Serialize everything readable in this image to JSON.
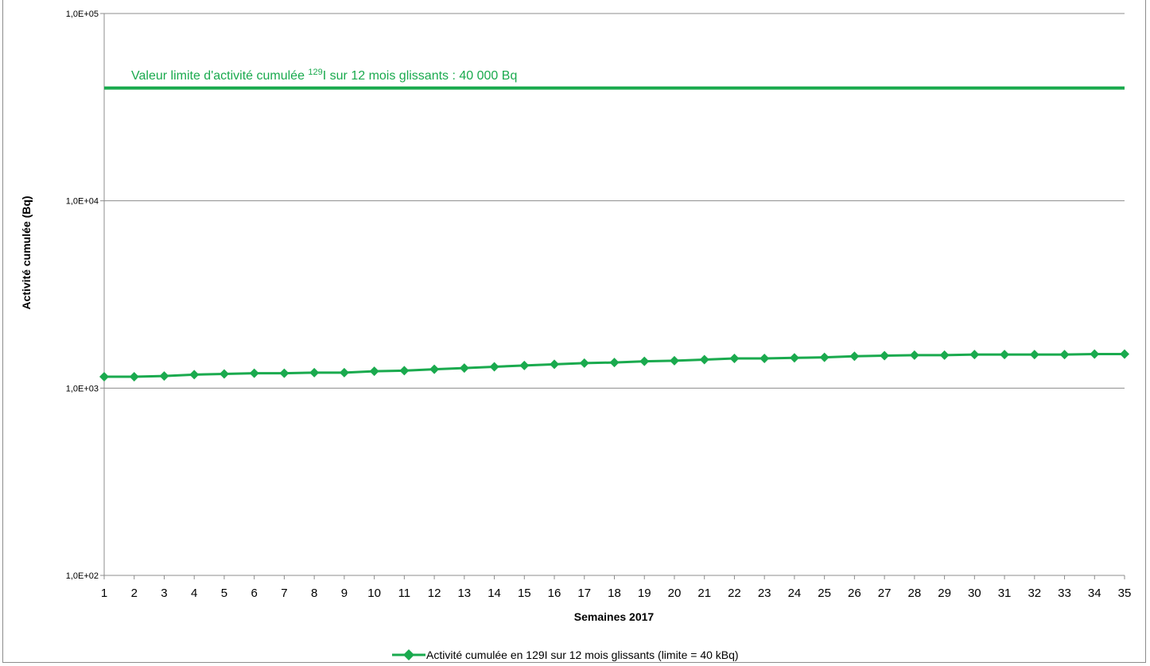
{
  "colors": {
    "series": "#1aaa4e",
    "gridline": "#8c8c8c",
    "axis": "#8c8c8c",
    "frame": "#8c8c8c"
  },
  "chart_data": {
    "type": "line",
    "title": "",
    "xlabel": "Semaines 2017",
    "ylabel": "Activité cumulée (Bq)",
    "yscale": "log",
    "ylim": [
      100,
      100000
    ],
    "y_ticks": [
      100,
      1000,
      10000,
      100000
    ],
    "y_tick_labels": [
      "1,0E+02",
      "1,0E+03",
      "1,0E+04",
      "1,0E+05"
    ],
    "x_tick_labels": [
      "1",
      "2",
      "3",
      "4",
      "5",
      "6",
      "7",
      "8",
      "9",
      "10",
      "11",
      "12",
      "13",
      "14",
      "15",
      "16",
      "17",
      "18",
      "19",
      "20",
      "21",
      "22",
      "23",
      "24",
      "25",
      "26",
      "27",
      "28",
      "29",
      "30",
      "31",
      "32",
      "33",
      "34",
      "35"
    ],
    "x": [
      1,
      2,
      3,
      4,
      5,
      6,
      7,
      8,
      9,
      10,
      11,
      12,
      13,
      14,
      15,
      16,
      17,
      18,
      19,
      20,
      21,
      22,
      23,
      24,
      25,
      26,
      27,
      28,
      29,
      30,
      31,
      32,
      33,
      34,
      35
    ],
    "grid": true,
    "legend_position": "bottom",
    "series": [
      {
        "name": "Activité cumulée en 129I sur 12 mois glissants (limite = 40 kBq)",
        "marker": "diamond",
        "values": [
          1150,
          1150,
          1160,
          1180,
          1190,
          1200,
          1200,
          1210,
          1210,
          1230,
          1240,
          1260,
          1280,
          1300,
          1320,
          1340,
          1360,
          1370,
          1390,
          1400,
          1420,
          1440,
          1440,
          1450,
          1460,
          1480,
          1490,
          1500,
          1500,
          1510,
          1510,
          1510,
          1510,
          1520,
          1520
        ]
      }
    ],
    "limit_line": {
      "value": 40000,
      "label_before_sup": "Valeur limite d'activité cumulée ",
      "label_sup": "129",
      "label_after_sup": "I sur 12 mois  glissants : 40 000 Bq"
    }
  }
}
